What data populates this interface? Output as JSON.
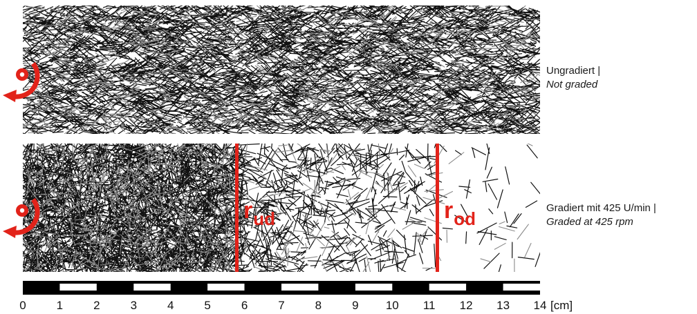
{
  "panels": [
    {
      "name": "ungraded",
      "label_de": "Ungradiert |",
      "label_en": "Not graded"
    },
    {
      "name": "graded",
      "label_de": "Gradiert mit 425 U/min |",
      "label_en": "Graded at 425 rpm"
    }
  ],
  "markers": [
    {
      "symbol": "r",
      "subscript": "ud",
      "position_cm": 5.8,
      "color": "#e2231a"
    },
    {
      "symbol": "r",
      "subscript": "od",
      "position_cm": 11.2,
      "color": "#e2231a"
    }
  ],
  "scale": {
    "min_cm": 0,
    "max_cm": 14,
    "ticks": [
      "0",
      "1",
      "2",
      "3",
      "4",
      "5",
      "6",
      "7",
      "8",
      "9",
      "10",
      "11",
      "12",
      "13",
      "14"
    ],
    "unit": "[cm]"
  },
  "icons": {
    "rotation": "rotation-arrow-icon"
  },
  "colors": {
    "accent": "#e2231a",
    "fiber": "#111111"
  }
}
